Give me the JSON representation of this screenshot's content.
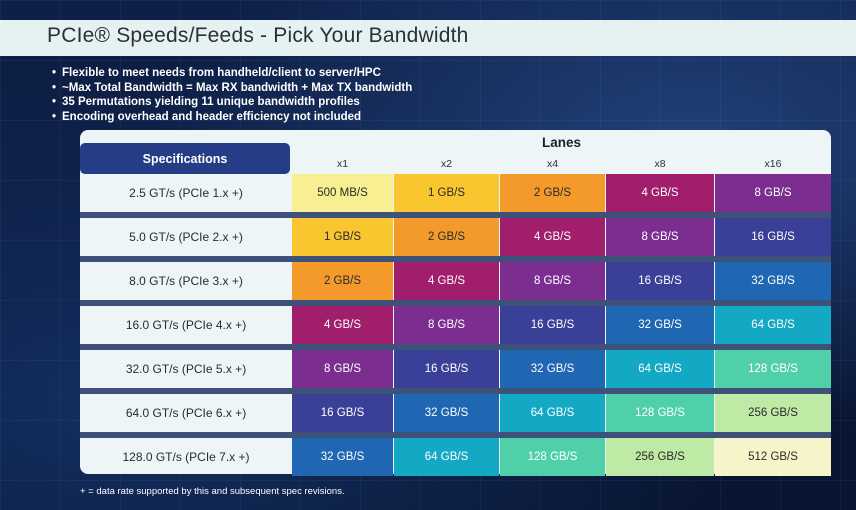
{
  "title": "PCIe® Speeds/Feeds - Pick Your Bandwidth",
  "bullets": [
    "Flexible to meet needs from handheld/client to server/HPC",
    "~Max Total Bandwidth = Max RX bandwidth + Max TX bandwidth",
    "35 Permutations yielding 11 unique bandwidth profiles",
    "Encoding overhead and header efficiency not included"
  ],
  "table": {
    "spec_header": "Specifications",
    "lanes_header": "Lanes",
    "columns": [
      "x1",
      "x2",
      "x4",
      "x8",
      "x16"
    ],
    "rows": [
      {
        "spec": "2.5 GT/s (PCIe 1.x +)",
        "values": [
          "500 MB/S",
          "1 GB/S",
          "2 GB/S",
          "4 GB/S",
          "8 GB/S"
        ]
      },
      {
        "spec": "5.0 GT/s (PCIe 2.x +)",
        "values": [
          "1 GB/S",
          "2 GB/S",
          "4 GB/S",
          "8 GB/S",
          "16 GB/S"
        ]
      },
      {
        "spec": "8.0 GT/s (PCIe 3.x +)",
        "values": [
          "2 GB/S",
          "4 GB/S",
          "8 GB/S",
          "16 GB/S",
          "32 GB/S"
        ]
      },
      {
        "spec": "16.0 GT/s (PCIe 4.x +)",
        "values": [
          "4 GB/S",
          "8 GB/S",
          "16 GB/S",
          "32 GB/S",
          "64 GB/S"
        ]
      },
      {
        "spec": "32.0 GT/s (PCIe 5.x +)",
        "values": [
          "8 GB/S",
          "16 GB/S",
          "32 GB/S",
          "64 GB/S",
          "128 GB/S"
        ]
      },
      {
        "spec": "64.0 GT/s (PCIe 6.x +)",
        "values": [
          "16 GB/S",
          "32 GB/S",
          "64 GB/S",
          "128 GB/S",
          "256 GB/S"
        ]
      },
      {
        "spec": "128.0 GT/s (PCIe 7.x +)",
        "values": [
          "32 GB/S",
          "64 GB/S",
          "128 GB/S",
          "256 GB/S",
          "512 GB/S"
        ]
      }
    ]
  },
  "bandwidth_colors": {
    "500 MB/S": "#f7ef92",
    "1 GB/S": "#f9c62f",
    "2 GB/S": "#f39a2a",
    "4 GB/S": "#a01e6b",
    "8 GB/S": "#7b2d90",
    "16 GB/S": "#3a3f98",
    "32 GB/S": "#1f67b3",
    "64 GB/S": "#13a8c3",
    "128 GB/S": "#4fd0a9",
    "256 GB/S": "#bfeaa6",
    "512 GB/S": "#f6f5c9"
  },
  "footnote": "+ = data rate supported by this and subsequent spec revisions."
}
